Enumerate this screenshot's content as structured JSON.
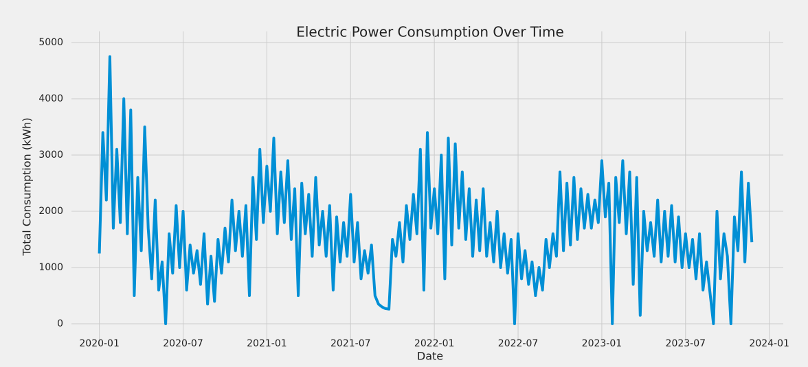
{
  "chart_data": {
    "type": "line",
    "title": "Electric Power Consumption Over Time",
    "x_label": "Date",
    "y_label": "Total Consumption (kWh)",
    "x": [
      "2020-01",
      "2020-02",
      "2020-03",
      "2020-04",
      "2020-05",
      "2020-06",
      "2020-07",
      "2020-08",
      "2020-09",
      "2020-10",
      "2020-11",
      "2020-12",
      "2021-01",
      "2021-02",
      "2021-03",
      "2021-04",
      "2021-05",
      "2021-06",
      "2021-07",
      "2021-08",
      "2021-09",
      "2021-10",
      "2021-11",
      "2021-12",
      "2022-01",
      "2022-02",
      "2022-03",
      "2022-04",
      "2022-05",
      "2022-06",
      "2022-07",
      "2022-08",
      "2022-09",
      "2022-10",
      "2022-11",
      "2022-12",
      "2023-01",
      "2023-02",
      "2023-03",
      "2023-04",
      "2023-05",
      "2023-06",
      "2023-07",
      "2023-08",
      "2023-09",
      "2023-10",
      "2023-11"
    ],
    "series": [
      {
        "color": "#008fd5",
        "values": [
          [
            1250,
            3400,
            2200,
            4750
          ],
          [
            1700,
            3100,
            1800,
            4000
          ],
          [
            1600,
            3800,
            500,
            2600
          ],
          [
            1300,
            3500,
            1700,
            800
          ],
          [
            2200,
            600,
            1100,
            0
          ],
          [
            1600,
            900,
            2100,
            1000
          ],
          [
            2000,
            600,
            1400,
            900
          ],
          [
            1300,
            700,
            1600,
            350
          ],
          [
            1200,
            400,
            1500,
            900
          ],
          [
            1700,
            1100,
            2200,
            1300
          ],
          [
            2000,
            1200,
            2100,
            500
          ],
          [
            2600,
            1500,
            3100,
            1800
          ],
          [
            2800,
            2000,
            3300,
            1600
          ],
          [
            2700,
            1800,
            2900,
            1500
          ],
          [
            2400,
            500,
            2500,
            1600
          ],
          [
            2300,
            1200,
            2600,
            1400
          ],
          [
            2000,
            1200,
            2100,
            600
          ],
          [
            1900,
            1100,
            1800,
            1200
          ],
          [
            2300,
            1100,
            1800,
            800
          ],
          [
            1300,
            900,
            1400,
            500
          ],
          [
            350,
            300,
            270,
            260
          ],
          [
            1500,
            1200,
            1800,
            1100
          ],
          [
            2100,
            1500,
            2300,
            1600
          ],
          [
            3100,
            600,
            3400,
            1700
          ],
          [
            2400,
            1600,
            3000,
            800
          ],
          [
            3300,
            1400,
            3200,
            1700
          ],
          [
            2700,
            1500,
            2400,
            1200
          ],
          [
            2200,
            1300,
            2400,
            1200
          ],
          [
            1800,
            1100,
            2000,
            1000
          ],
          [
            1600,
            900,
            1500,
            0
          ],
          [
            1600,
            800,
            1300,
            700
          ],
          [
            1100,
            500,
            1000,
            600
          ],
          [
            1500,
            1000,
            1600,
            1200
          ],
          [
            2700,
            1300,
            2500,
            1400
          ],
          [
            2600,
            1500,
            2400,
            1700
          ],
          [
            2300,
            1700,
            2200,
            1800
          ],
          [
            2900,
            1900,
            2500,
            0
          ],
          [
            2600,
            1800,
            2900,
            1600
          ],
          [
            2700,
            700,
            2600,
            150
          ],
          [
            2000,
            1300,
            1800,
            1200
          ],
          [
            2200,
            1100,
            2000,
            1200
          ],
          [
            2100,
            1100,
            1900,
            1000
          ],
          [
            1600,
            1000,
            1500,
            800
          ],
          [
            1600,
            600,
            1100,
            550
          ],
          [
            0,
            2000,
            800,
            1600
          ],
          [
            1200,
            0,
            1900,
            1300
          ],
          [
            2700,
            1100,
            2500,
            1450
          ]
        ]
      }
    ],
    "xlim": [
      "2019-11",
      "2024-02"
    ],
    "xticks": [
      "2020-01",
      "2020-07",
      "2021-01",
      "2021-07",
      "2022-01",
      "2022-07",
      "2023-01",
      "2023-07",
      "2024-01"
    ],
    "ylim": [
      -300,
      5200
    ],
    "yticks": [
      0,
      1000,
      2000,
      3000,
      4000,
      5000
    ],
    "grid": true
  }
}
